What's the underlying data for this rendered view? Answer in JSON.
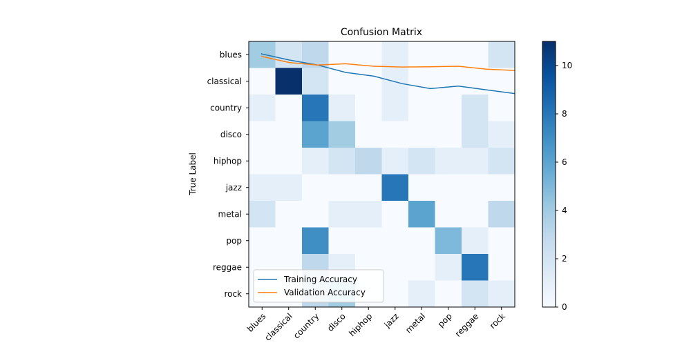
{
  "chart_data": [
    {
      "type": "heatmap",
      "title": "Confusion Matrix",
      "ylabel": "True Label",
      "xlabel": "",
      "x_categories": [
        "blues",
        "classical",
        "country",
        "disco",
        "hiphop",
        "jazz",
        "metal",
        "pop",
        "reggae",
        "rock"
      ],
      "y_categories": [
        "blues",
        "classical",
        "country",
        "disco",
        "hiphop",
        "jazz",
        "metal",
        "pop",
        "reggae",
        "rock"
      ],
      "values": [
        [
          4,
          2,
          3,
          0,
          0,
          1,
          0,
          0,
          0,
          2
        ],
        [
          0,
          11,
          2,
          0,
          0,
          1,
          0,
          0,
          0,
          0
        ],
        [
          1,
          0,
          8,
          1,
          0,
          1,
          0,
          0,
          2,
          0
        ],
        [
          0,
          0,
          6,
          4,
          0,
          0,
          0,
          0,
          2,
          1
        ],
        [
          0,
          0,
          1,
          2,
          3,
          1,
          2,
          1,
          1,
          2
        ],
        [
          1,
          1,
          0,
          0,
          0,
          8,
          0,
          0,
          0,
          0
        ],
        [
          2,
          0,
          0,
          1,
          1,
          0,
          6,
          0,
          0,
          3
        ],
        [
          0,
          0,
          7,
          0,
          0,
          0,
          0,
          5,
          1,
          0
        ],
        [
          0,
          0,
          3,
          1,
          0,
          0,
          0,
          1,
          8,
          0
        ],
        [
          0,
          0,
          3,
          4,
          0,
          0,
          1,
          0,
          2,
          1
        ]
      ],
      "colormap": "Blues",
      "colorbar": {
        "min": 0,
        "max": 11,
        "ticks": [
          0,
          2,
          4,
          6,
          8,
          10
        ]
      }
    },
    {
      "type": "line",
      "x": [
        0,
        1,
        2,
        3,
        4,
        5,
        6,
        7,
        8,
        9
      ],
      "series": [
        {
          "name": "Training Accuracy",
          "color": "#1f77b4",
          "values": [
            0.95,
            0.925,
            0.905,
            0.875,
            0.86,
            0.83,
            0.81,
            0.82,
            0.805,
            0.79
          ]
        },
        {
          "name": "Validation Accuracy",
          "color": "#ff7f0e",
          "values": [
            0.94,
            0.915,
            0.905,
            0.91,
            0.9,
            0.897,
            0.898,
            0.9,
            0.888,
            0.883
          ]
        }
      ],
      "legend_position": "lower-left"
    }
  ]
}
